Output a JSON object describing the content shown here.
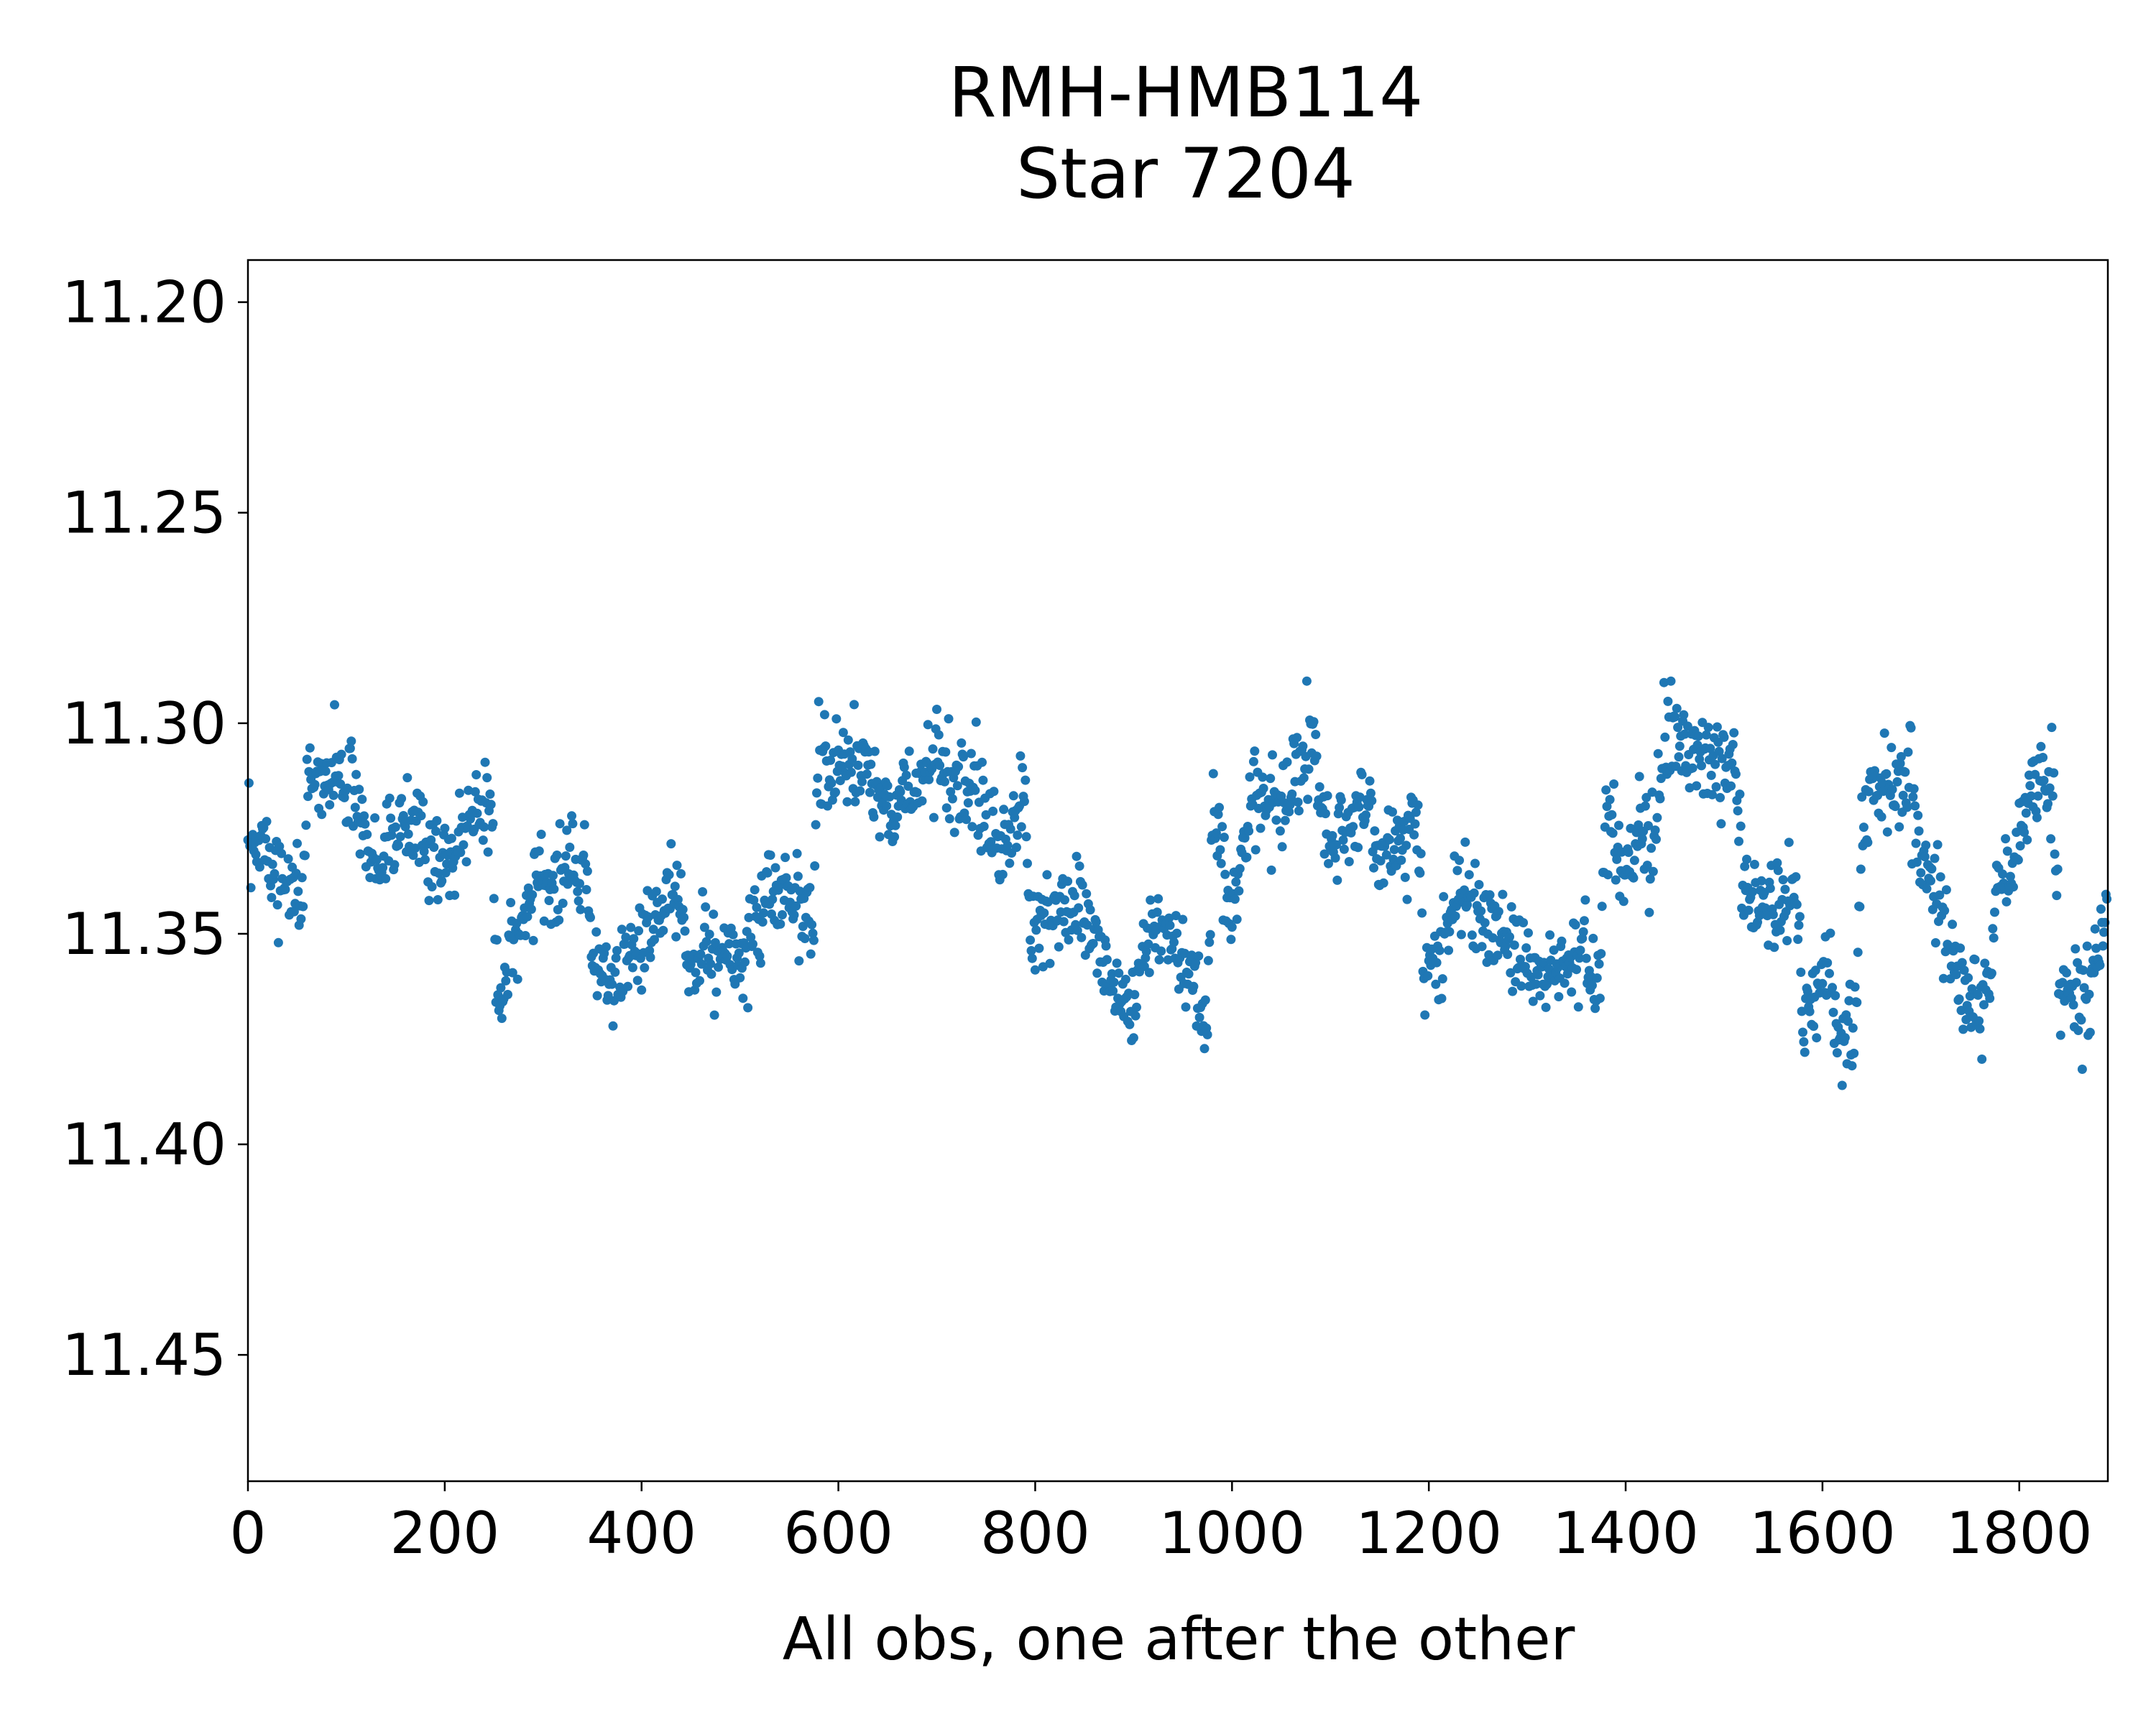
{
  "chart_data": {
    "type": "scatter",
    "title": [
      "RMH-HMB114",
      "Star 7204"
    ],
    "xlabel": "All obs, one after the other",
    "ylabel": "",
    "xlim": [
      0,
      1890
    ],
    "ylim": [
      11.48,
      11.19
    ],
    "y_inverted": true,
    "grid": false,
    "legend": "none",
    "marker_color": "#1f77b4",
    "x_ticks": [
      {
        "value": 0,
        "label": "0"
      },
      {
        "value": 200,
        "label": "200"
      },
      {
        "value": 400,
        "label": "400"
      },
      {
        "value": 600,
        "label": "600"
      },
      {
        "value": 800,
        "label": "800"
      },
      {
        "value": 1000,
        "label": "1000"
      },
      {
        "value": 1200,
        "label": "1200"
      },
      {
        "value": 1400,
        "label": "1400"
      },
      {
        "value": 1600,
        "label": "1600"
      },
      {
        "value": 1800,
        "label": "1800"
      }
    ],
    "y_ticks": [
      {
        "value": 11.2,
        "label": "11.20"
      },
      {
        "value": 11.25,
        "label": "11.25"
      },
      {
        "value": 11.3,
        "label": "11.30"
      },
      {
        "value": 11.35,
        "label": "11.35"
      },
      {
        "value": 11.4,
        "label": "11.40"
      },
      {
        "value": 11.45,
        "label": "11.45"
      }
    ],
    "n_points": 1890,
    "trend_knots": [
      [
        0,
        11.325
      ],
      [
        55,
        11.345
      ],
      [
        62,
        11.315
      ],
      [
        100,
        11.312
      ],
      [
        130,
        11.333
      ],
      [
        160,
        11.325
      ],
      [
        200,
        11.333
      ],
      [
        240,
        11.315
      ],
      [
        248,
        11.318
      ],
      [
        252,
        11.365
      ],
      [
        265,
        11.355
      ],
      [
        290,
        11.34
      ],
      [
        320,
        11.338
      ],
      [
        345,
        11.335
      ],
      [
        350,
        11.36
      ],
      [
        380,
        11.358
      ],
      [
        420,
        11.345
      ],
      [
        440,
        11.338
      ],
      [
        445,
        11.352
      ],
      [
        500,
        11.355
      ],
      [
        520,
        11.348
      ],
      [
        525,
        11.335
      ],
      [
        575,
        11.345
      ],
      [
        580,
        11.308
      ],
      [
        620,
        11.31
      ],
      [
        660,
        11.32
      ],
      [
        700,
        11.31
      ],
      [
        740,
        11.318
      ],
      [
        770,
        11.33
      ],
      [
        790,
        11.318
      ],
      [
        795,
        11.35
      ],
      [
        830,
        11.342
      ],
      [
        860,
        11.352
      ],
      [
        900,
        11.37
      ],
      [
        910,
        11.352
      ],
      [
        940,
        11.35
      ],
      [
        975,
        11.372
      ],
      [
        980,
        11.325
      ],
      [
        1000,
        11.345
      ],
      [
        1020,
        11.318
      ],
      [
        1050,
        11.32
      ],
      [
        1080,
        11.305
      ],
      [
        1100,
        11.33
      ],
      [
        1140,
        11.318
      ],
      [
        1150,
        11.335
      ],
      [
        1175,
        11.328
      ],
      [
        1190,
        11.322
      ],
      [
        1195,
        11.362
      ],
      [
        1230,
        11.342
      ],
      [
        1280,
        11.35
      ],
      [
        1310,
        11.36
      ],
      [
        1360,
        11.355
      ],
      [
        1375,
        11.362
      ],
      [
        1380,
        11.32
      ],
      [
        1400,
        11.335
      ],
      [
        1420,
        11.325
      ],
      [
        1425,
        11.338
      ],
      [
        1440,
        11.3
      ],
      [
        1480,
        11.31
      ],
      [
        1510,
        11.308
      ],
      [
        1520,
        11.34
      ],
      [
        1550,
        11.345
      ],
      [
        1575,
        11.34
      ],
      [
        1580,
        11.37
      ],
      [
        1610,
        11.358
      ],
      [
        1615,
        11.375
      ],
      [
        1635,
        11.37
      ],
      [
        1640,
        11.32
      ],
      [
        1660,
        11.315
      ],
      [
        1690,
        11.312
      ],
      [
        1700,
        11.33
      ],
      [
        1720,
        11.345
      ],
      [
        1730,
        11.355
      ],
      [
        1735,
        11.362
      ],
      [
        1770,
        11.365
      ],
      [
        1775,
        11.34
      ],
      [
        1800,
        11.33
      ],
      [
        1810,
        11.315
      ],
      [
        1835,
        11.315
      ],
      [
        1840,
        11.36
      ],
      [
        1870,
        11.365
      ],
      [
        1890,
        11.34
      ]
    ],
    "scatter_sigma": 0.0055
  }
}
